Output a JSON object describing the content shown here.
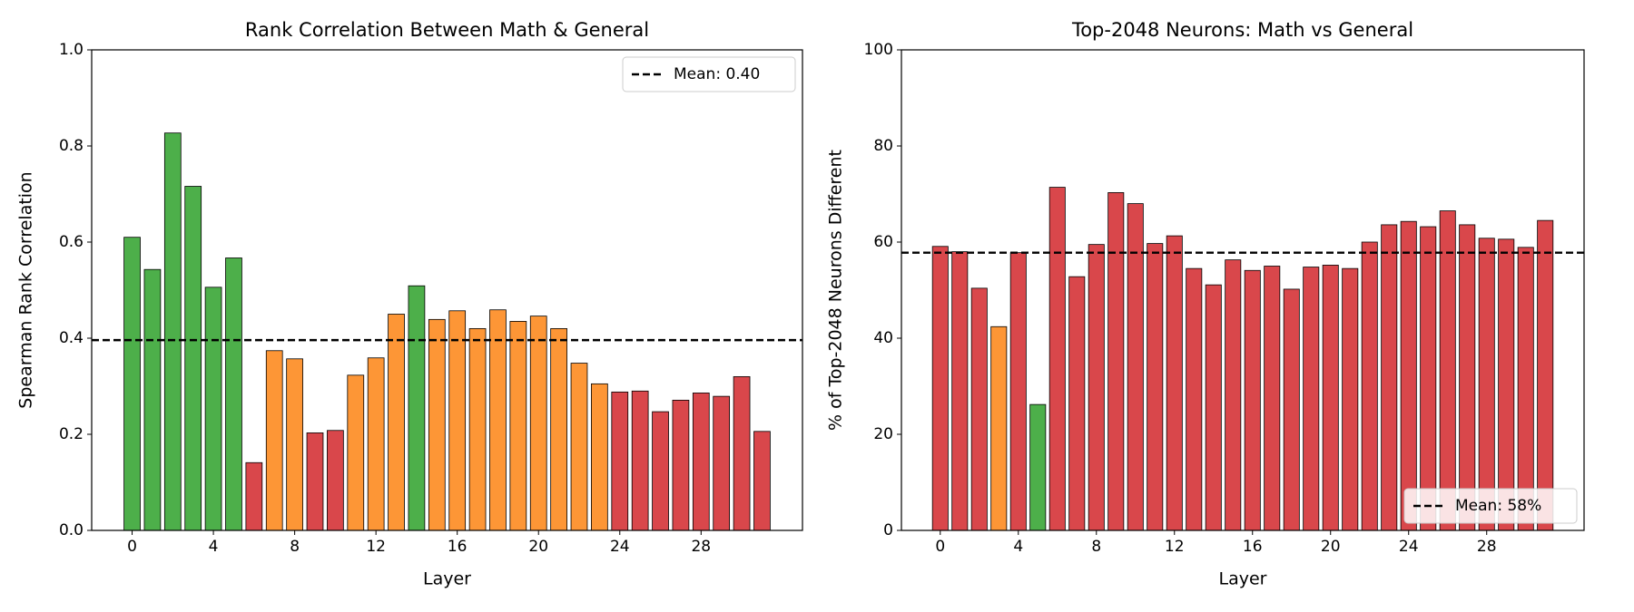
{
  "chart_data": [
    {
      "type": "bar",
      "title": "Rank Correlation Between Math & General",
      "xlabel": "Layer",
      "ylabel": "Spearman Rank Correlation",
      "x": [
        0,
        1,
        2,
        3,
        4,
        5,
        6,
        7,
        8,
        9,
        10,
        11,
        12,
        13,
        14,
        15,
        16,
        17,
        18,
        19,
        20,
        21,
        22,
        23,
        24,
        25,
        26,
        27,
        28,
        29,
        30,
        31
      ],
      "values": [
        0.61,
        0.543,
        0.827,
        0.716,
        0.506,
        0.567,
        0.141,
        0.374,
        0.357,
        0.203,
        0.208,
        0.323,
        0.359,
        0.45,
        0.509,
        0.439,
        0.457,
        0.42,
        0.459,
        0.435,
        0.446,
        0.42,
        0.348,
        0.305,
        0.288,
        0.29,
        0.247,
        0.271,
        0.286,
        0.279,
        0.32,
        0.206
      ],
      "colors": [
        "#4daf4a",
        "#4daf4a",
        "#4daf4a",
        "#4daf4a",
        "#4daf4a",
        "#4daf4a",
        "#d9474b",
        "#fd9636",
        "#fd9636",
        "#d9474b",
        "#d9474b",
        "#fd9636",
        "#fd9636",
        "#fd9636",
        "#4daf4a",
        "#fd9636",
        "#fd9636",
        "#fd9636",
        "#fd9636",
        "#fd9636",
        "#fd9636",
        "#fd9636",
        "#fd9636",
        "#fd9636",
        "#d9474b",
        "#d9474b",
        "#d9474b",
        "#d9474b",
        "#d9474b",
        "#d9474b",
        "#d9474b",
        "#d9474b"
      ],
      "xlim": [
        -1.99,
        32.99
      ],
      "xticks": [
        0,
        4,
        8,
        12,
        16,
        20,
        24,
        28
      ],
      "ylim": [
        0,
        1
      ],
      "yticks": [
        {
          "value": 0,
          "label": "0.0"
        },
        0.2,
        0.4,
        0.6,
        0.8,
        {
          "value": 1,
          "label": "1.0"
        }
      ],
      "mean": {
        "value": 0.396,
        "label": "Mean: 0.40",
        "color": "#000000"
      },
      "legend_loc": "upper right"
    },
    {
      "type": "bar",
      "title": "Top-2048 Neurons: Math vs General",
      "xlabel": "Layer",
      "ylabel": "% of Top-2048 Neurons Different",
      "x": [
        0,
        1,
        2,
        3,
        4,
        5,
        6,
        7,
        8,
        9,
        10,
        11,
        12,
        13,
        14,
        15,
        16,
        17,
        18,
        19,
        20,
        21,
        22,
        23,
        24,
        25,
        26,
        27,
        28,
        29,
        30,
        31
      ],
      "values": [
        59.1,
        58.0,
        50.4,
        42.4,
        57.8,
        26.2,
        71.4,
        52.8,
        59.5,
        70.3,
        68.0,
        59.7,
        61.3,
        54.5,
        51.1,
        56.3,
        54.1,
        55.0,
        50.2,
        54.8,
        55.2,
        54.5,
        60.0,
        63.6,
        64.3,
        63.2,
        66.5,
        63.6,
        60.8,
        60.6,
        58.9,
        64.5
      ],
      "colors": [
        "#d9474b",
        "#d9474b",
        "#d9474b",
        "#fd9636",
        "#d9474b",
        "#4daf4a",
        "#d9474b",
        "#d9474b",
        "#d9474b",
        "#d9474b",
        "#d9474b",
        "#d9474b",
        "#d9474b",
        "#d9474b",
        "#d9474b",
        "#d9474b",
        "#d9474b",
        "#d9474b",
        "#d9474b",
        "#d9474b",
        "#d9474b",
        "#d9474b",
        "#d9474b",
        "#d9474b",
        "#d9474b",
        "#d9474b",
        "#d9474b",
        "#d9474b",
        "#d9474b",
        "#d9474b",
        "#d9474b",
        "#d9474b"
      ],
      "xlim": [
        -1.99,
        32.99
      ],
      "xticks": [
        0,
        4,
        8,
        12,
        16,
        20,
        24,
        28
      ],
      "ylim": [
        0,
        100
      ],
      "yticks": [
        0,
        20,
        40,
        60,
        80,
        100
      ],
      "mean": {
        "value": 57.8,
        "label": "Mean: 58%",
        "color": "#000000"
      },
      "legend_loc": "lower right"
    }
  ]
}
